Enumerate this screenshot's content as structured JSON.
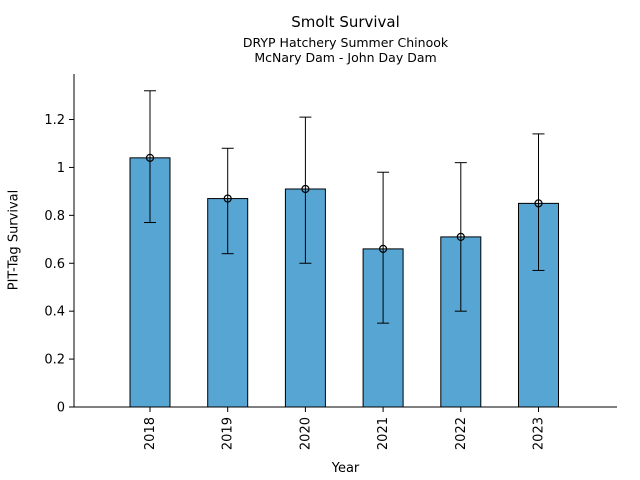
{
  "chart_data": {
    "type": "bar",
    "title": "Smolt Survival",
    "subtitle": [
      "DRYP Hatchery Summer Chinook",
      "McNary Dam - John Day Dam"
    ],
    "categories": [
      "2018",
      "2019",
      "2020",
      "2021",
      "2022",
      "2023"
    ],
    "values": [
      1.04,
      0.87,
      0.91,
      0.66,
      0.71,
      0.85
    ],
    "error_low": [
      0.77,
      0.64,
      0.6,
      0.35,
      0.4,
      0.57
    ],
    "error_high": [
      1.32,
      1.08,
      1.21,
      0.98,
      1.02,
      1.14
    ],
    "xlabel": "Year",
    "ylabel": "PIT-Tag Survival",
    "yticks": [
      0,
      0.2,
      0.4,
      0.6,
      0.8,
      1,
      1.2
    ],
    "ytick_labels": [
      "0",
      "0.2",
      "0.4",
      "0.6",
      "0.8",
      "1",
      "1.2"
    ],
    "ylim": [
      0,
      1.39
    ],
    "grid": false,
    "legend": "none",
    "xtick_rotation_deg": 90,
    "bar_color": "#56a5d3",
    "bar_edge_color": "#000000",
    "error_color": "#000000",
    "marker": "open-circle",
    "background": "#ffffff"
  }
}
